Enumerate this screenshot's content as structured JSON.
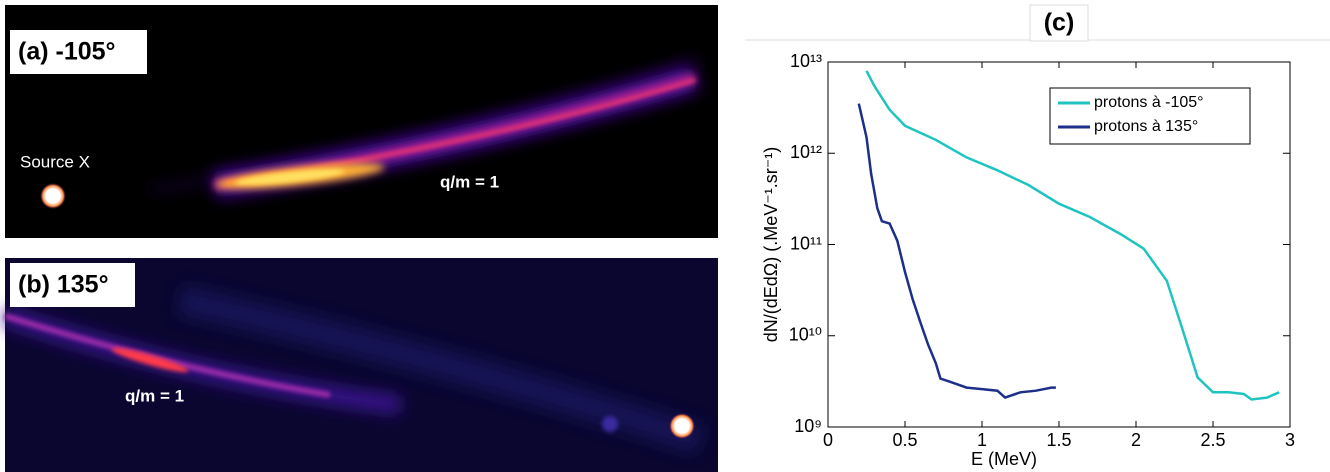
{
  "panels": {
    "a": {
      "label": "(a) -105°",
      "source_label": "Source X",
      "annotation": "q/m = 1"
    },
    "b": {
      "label": "(b) 135°",
      "annotation": "q/m = 1"
    }
  },
  "chart_data": {
    "type": "line",
    "panel_label": "(c)",
    "x_label": "E (MeV)",
    "y_label": "dN/(dEdΩ) (.MeV⁻¹.sr⁻¹)",
    "log_y": true,
    "grid": false,
    "legend": "upper right",
    "xlim": [
      0,
      3
    ],
    "xticks": [
      0,
      0.5,
      1,
      1.5,
      2,
      2.5,
      3
    ],
    "ylim": [
      1000000000,
      10000000000000
    ],
    "yticks": [
      {
        "value": 1000000000,
        "label": "10⁹"
      },
      {
        "value": 10000000000,
        "label": "10¹⁰"
      },
      {
        "value": 100000000000,
        "label": "10¹¹"
      },
      {
        "value": 1000000000000,
        "label": "10¹²"
      },
      {
        "value": 10000000000000,
        "label": "10¹³"
      }
    ],
    "series": [
      {
        "name": "protons à -105°",
        "color": "#1fc4c0",
        "x": [
          0.25,
          0.3,
          0.4,
          0.5,
          0.7,
          0.9,
          1.1,
          1.3,
          1.5,
          1.7,
          1.9,
          2.05,
          2.2,
          2.3,
          2.4,
          2.5,
          2.6,
          2.7,
          2.75,
          2.85,
          2.93
        ],
        "values": [
          8000000000000,
          5500000000000,
          3000000000000,
          2000000000000,
          1400000000000,
          900000000000,
          650000000000,
          450000000000,
          280000000000,
          200000000000,
          130000000000,
          90000000000,
          40000000000,
          12000000000,
          3500000000,
          2400000000,
          2400000000,
          2300000000,
          2000000000,
          2100000000,
          2400000000
        ]
      },
      {
        "name": "protons à 135°",
        "color": "#1c2f8a",
        "x": [
          0.2,
          0.25,
          0.28,
          0.32,
          0.35,
          0.4,
          0.45,
          0.5,
          0.55,
          0.6,
          0.65,
          0.7,
          0.73,
          0.8,
          0.9,
          1.0,
          1.1,
          1.15,
          1.25,
          1.35,
          1.45,
          1.48
        ],
        "values": [
          3500000000000,
          1500000000000,
          600000000000,
          250000000000,
          180000000000,
          170000000000,
          110000000000,
          50000000000,
          25000000000,
          14000000000,
          8000000000,
          5000000000,
          3400000000,
          3100000000,
          2700000000,
          2600000000,
          2500000000,
          2100000000,
          2400000000,
          2500000000,
          2700000000,
          2700000000
        ]
      }
    ]
  }
}
